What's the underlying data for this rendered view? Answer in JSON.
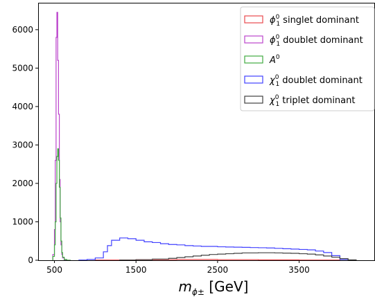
{
  "chart_data": {
    "type": "histogram",
    "xlabel": "m",
    "xlabel_sub": "ϕ±",
    "xlabel_unit": "[GeV]",
    "ylabel": "",
    "title": "",
    "xlim": [
      300,
      4430
    ],
    "ylim": [
      0,
      6700
    ],
    "x_ticks": [
      500,
      1500,
      2500,
      3500
    ],
    "y_ticks": [
      0,
      1000,
      2000,
      3000,
      4000,
      5000,
      6000
    ],
    "grid": false,
    "legend_position": "top-right",
    "series": [
      {
        "name": "singlet dominant",
        "symbol": "ϕ",
        "sub": "1",
        "sup": "0",
        "color": "#e8484c",
        "edges": [
          1000,
          1500,
          2000,
          2500,
          3000,
          3500,
          4000
        ],
        "values": [
          5,
          15,
          20,
          15,
          10,
          5
        ]
      },
      {
        "name": "doublet dominant",
        "symbol": "ϕ",
        "sub": "1",
        "sup": "0",
        "color": "#bb44cc",
        "edges": [
          480,
          500,
          510,
          520,
          530,
          540,
          550,
          560,
          570,
          580,
          590,
          600,
          620,
          650,
          700
        ],
        "values": [
          150,
          800,
          2600,
          5800,
          6450,
          5200,
          3800,
          2100,
          1000,
          400,
          150,
          60,
          10,
          0
        ]
      },
      {
        "name": "",
        "symbol": "A",
        "sub": "",
        "sup": "0",
        "color": "#3faa3f",
        "edges": [
          480,
          500,
          510,
          520,
          530,
          540,
          550,
          560,
          570,
          580,
          590,
          600,
          620,
          650,
          700
        ],
        "values": [
          100,
          400,
          1000,
          2000,
          2700,
          2900,
          2600,
          1900,
          1100,
          500,
          200,
          80,
          20,
          0
        ]
      },
      {
        "name": "doublet dominant",
        "symbol": "χ",
        "sub": "1",
        "sup": "0",
        "color": "#4040ff",
        "edges": [
          800,
          900,
          1000,
          1100,
          1150,
          1200,
          1300,
          1400,
          1500,
          1600,
          1700,
          1800,
          1900,
          2000,
          2100,
          2200,
          2300,
          2400,
          2500,
          2600,
          2700,
          2800,
          2900,
          3000,
          3100,
          3200,
          3300,
          3400,
          3500,
          3600,
          3700,
          3800,
          3900,
          4000,
          4100
        ],
        "values": [
          5,
          20,
          60,
          220,
          380,
          520,
          580,
          560,
          520,
          480,
          460,
          430,
          410,
          400,
          380,
          370,
          360,
          360,
          350,
          345,
          340,
          335,
          330,
          325,
          320,
          310,
          300,
          290,
          280,
          270,
          240,
          200,
          120,
          20
        ]
      },
      {
        "name": "triplet dominant",
        "symbol": "χ",
        "sub": "1",
        "sup": "0",
        "color": "#404040",
        "edges": [
          1300,
          1500,
          1700,
          1900,
          2000,
          2100,
          2200,
          2300,
          2400,
          2500,
          2600,
          2700,
          2800,
          2900,
          3000,
          3100,
          3200,
          3300,
          3400,
          3500,
          3600,
          3700,
          3800,
          3900,
          4000,
          4100,
          4200
        ],
        "values": [
          5,
          15,
          30,
          50,
          70,
          90,
          110,
          130,
          150,
          160,
          170,
          180,
          190,
          190,
          195,
          195,
          190,
          185,
          180,
          170,
          160,
          140,
          110,
          80,
          40,
          10
        ]
      }
    ]
  }
}
